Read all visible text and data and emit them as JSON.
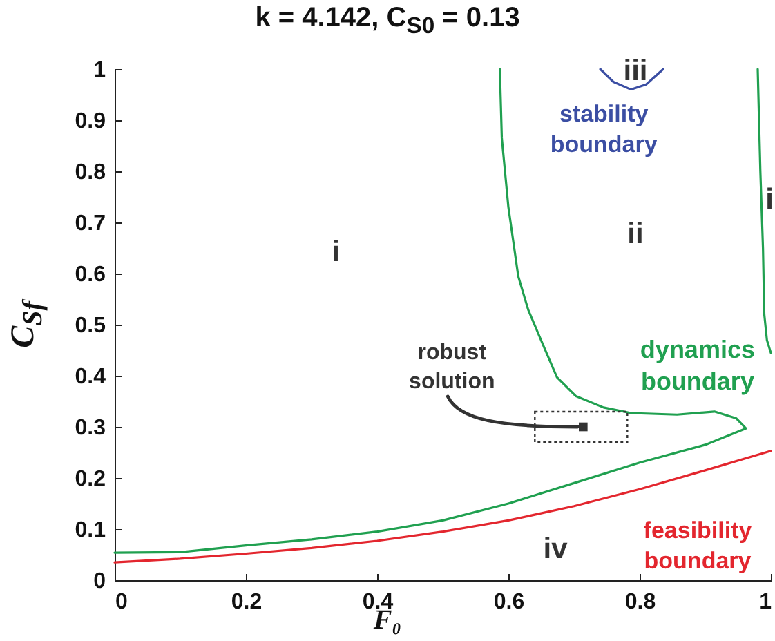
{
  "chart_data": {
    "type": "line",
    "title": "k = 4.142, C$_{S0}$ = 0.13",
    "xlabel": "F₀",
    "ylabel": "C$_{Sf}$",
    "xlim": [
      0,
      1
    ],
    "ylim": [
      0,
      1
    ],
    "xticks": [
      0,
      0.2,
      0.4,
      0.6,
      0.8,
      1
    ],
    "yticks": [
      0,
      0.1,
      0.2,
      0.3,
      0.4,
      0.5,
      0.6,
      0.7,
      0.8,
      0.9,
      1
    ],
    "series": [
      {
        "name": "dynamics boundary",
        "color": "#20a050",
        "x": [
          0,
          0.1,
          0.2,
          0.3,
          0.4,
          0.5,
          0.6,
          0.7,
          0.8,
          0.9,
          0.962,
          0.947,
          0.914,
          0.857,
          0.787,
          0.745,
          0.703,
          0.674,
          0.653,
          0.63,
          0.615,
          0.6,
          0.59,
          0.587
        ],
        "values": [
          0.054,
          0.055,
          0.068,
          0.08,
          0.095,
          0.117,
          0.15,
          0.19,
          0.23,
          0.265,
          0.297,
          0.317,
          0.33,
          0.324,
          0.327,
          0.338,
          0.36,
          0.397,
          0.46,
          0.53,
          0.595,
          0.73,
          0.865,
          1.0
        ]
      },
      {
        "color": "#20a050",
        "x": [
          0.98,
          0.984,
          0.988,
          0.99,
          0.994,
          1.0
        ],
        "values": [
          1.0,
          0.8,
          0.65,
          0.52,
          0.47,
          0.445
        ]
      },
      {
        "name": "feasibility boundary",
        "color": "#e3262e",
        "x": [
          0,
          0.1,
          0.2,
          0.3,
          0.4,
          0.5,
          0.6,
          0.7,
          0.8,
          0.9,
          1.0
        ],
        "values": [
          0.035,
          0.042,
          0.052,
          0.063,
          0.077,
          0.095,
          0.117,
          0.145,
          0.178,
          0.215,
          0.253
        ]
      },
      {
        "name": "stability boundary",
        "color": "#3b4ea3",
        "x": [
          0.74,
          0.76,
          0.787,
          0.81,
          0.836
        ],
        "values": [
          1.0,
          0.975,
          0.96,
          0.97,
          1.0
        ]
      },
      {
        "name": "robust solution",
        "type": "scatter",
        "marker": "square",
        "color": "#333333",
        "x": [
          0.714
        ],
        "values": [
          0.3
        ]
      }
    ],
    "annotations": [
      "i",
      "ii",
      "iii",
      "iv",
      "i"
    ]
  }
}
